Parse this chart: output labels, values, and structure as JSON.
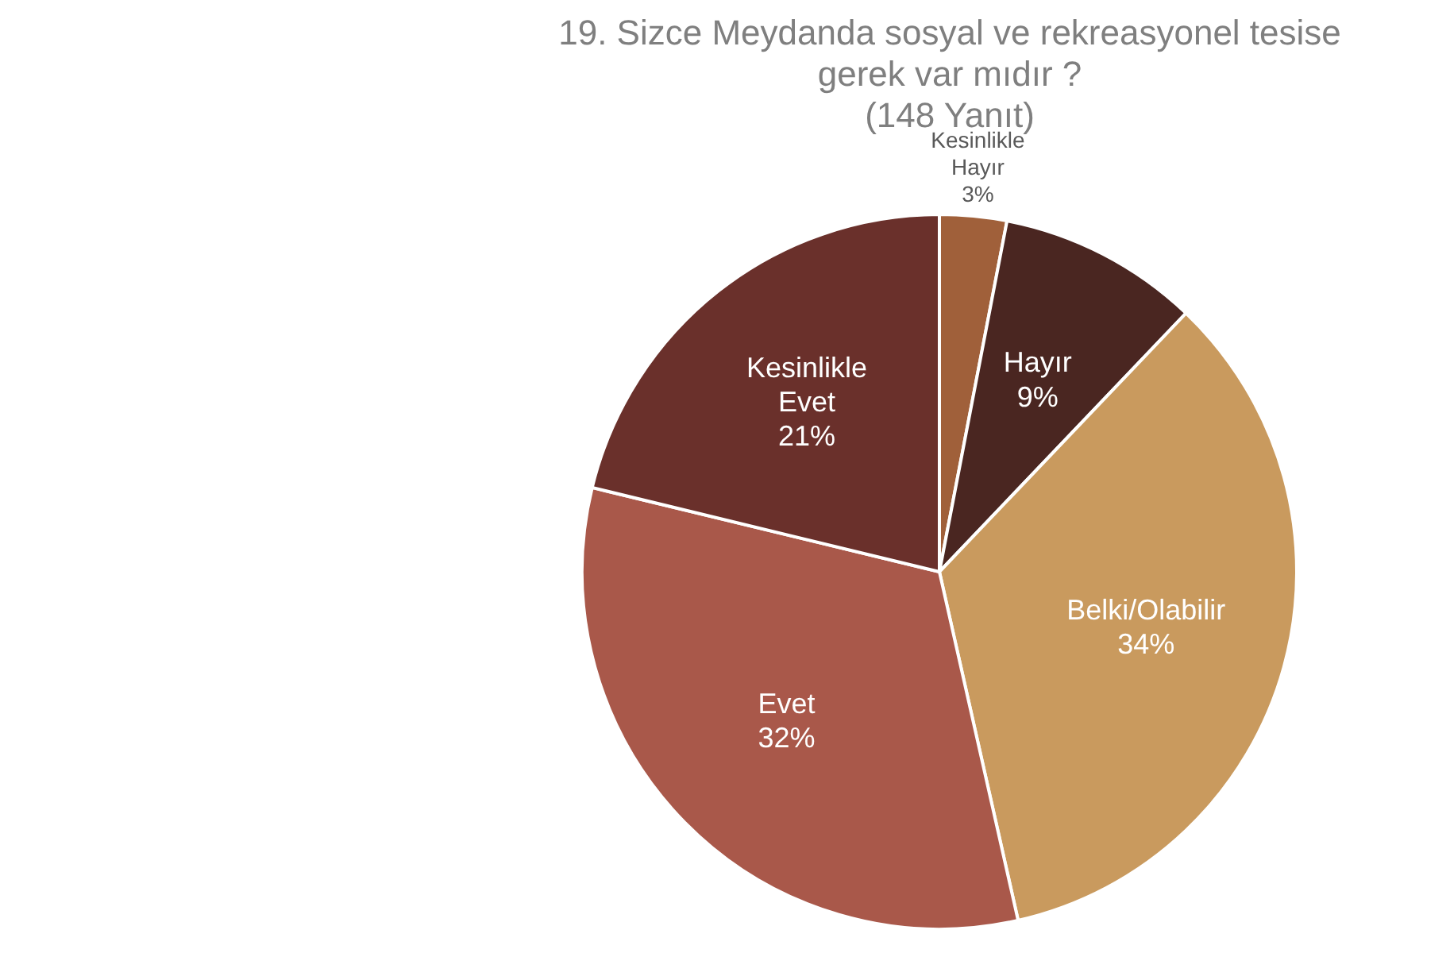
{
  "chart_data": {
    "type": "pie",
    "title": "19. Sizce Meydanda sosyal ve rekreasyonel tesise gerek var mıdır ?",
    "subtitle": "(148 Yanıt)",
    "categories": [
      "Kesinlikle Hayır",
      "Hayır",
      "Belki/Olabilir",
      "Evet",
      "Kesinlikle Evet"
    ],
    "values": [
      3,
      9,
      34,
      32,
      21
    ],
    "colors": [
      "#a0603a",
      "#4a2621",
      "#c99a5e",
      "#a9584a",
      "#6a302b"
    ],
    "value_labels": [
      "3%",
      "9%",
      "34%",
      "32%",
      "21%"
    ],
    "legend": false
  }
}
